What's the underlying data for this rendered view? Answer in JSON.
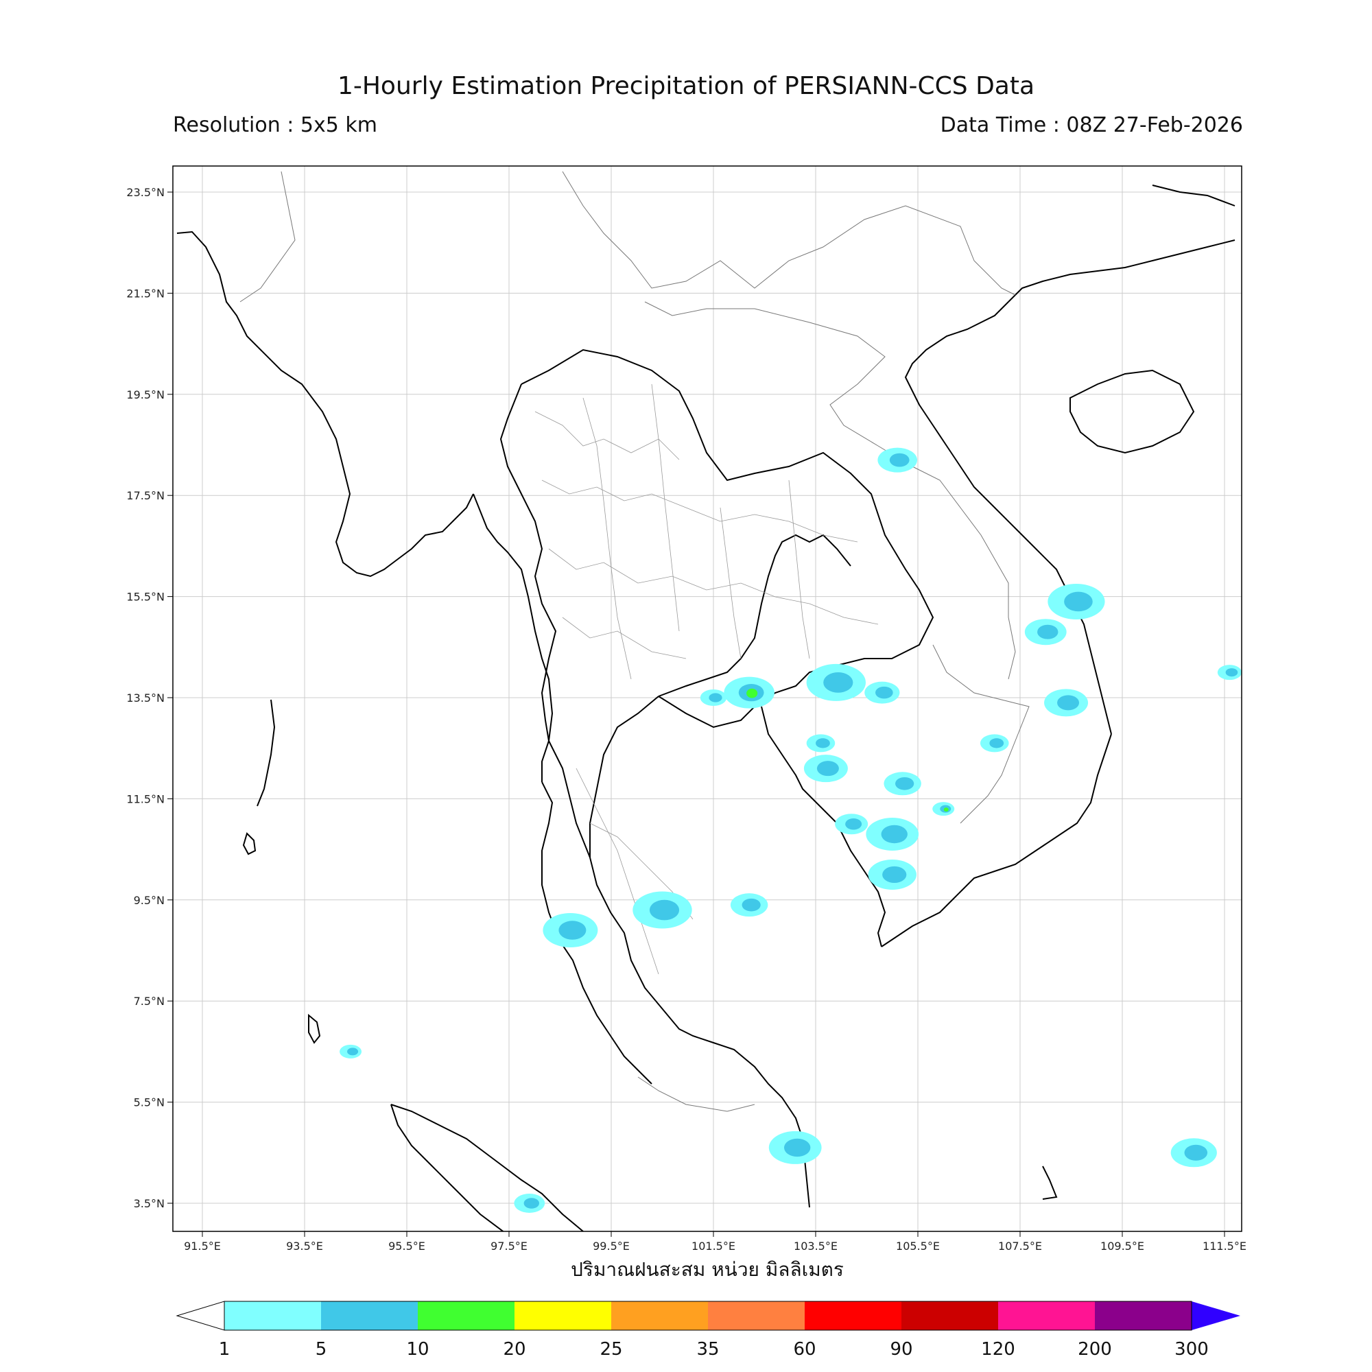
{
  "header": {
    "title": "1-Hourly Estimation Precipitation of PERSIANN-CCS Data",
    "resolution": "Resolution : 5x5 km",
    "data_time": "Data Time : 08Z 27-Feb-2026"
  },
  "map": {
    "lon_ticks": [
      "91.5°E",
      "93.5°E",
      "95.5°E",
      "97.5°E",
      "99.5°E",
      "101.5°E",
      "103.5°E",
      "105.5°E",
      "107.5°E",
      "109.5°E",
      "111.5°E"
    ],
    "lat_ticks": [
      "23.5°N",
      "21.5°N",
      "19.5°N",
      "17.5°N",
      "15.5°N",
      "13.5°N",
      "11.5°N",
      "9.5°N",
      "7.5°N",
      "5.5°N",
      "3.5°N"
    ],
    "x_label": "ปริมาณฝนสะสม หน่วย มิลลิเมตร"
  },
  "colorbar": {
    "levels": [
      "1",
      "5",
      "10",
      "20",
      "25",
      "35",
      "60",
      "90",
      "120",
      "200",
      "300"
    ],
    "colors": [
      "#80ffff",
      "#40c8e8",
      "#40ff30",
      "#ffff00",
      "#ffa020",
      "#ff8040",
      "#ff0000",
      "#cc0000",
      "#ff1493",
      "#8b008b"
    ],
    "extend_color": "#3000ff"
  },
  "rain_cells": [
    {
      "lon": 106.0,
      "lat": 11.3,
      "level": 2
    },
    {
      "lon": 105.2,
      "lat": 11.8,
      "level": 1
    },
    {
      "lon": 105.0,
      "lat": 10.8,
      "level": 1
    },
    {
      "lon": 103.6,
      "lat": 12.6,
      "level": 1
    },
    {
      "lon": 103.7,
      "lat": 12.1,
      "level": 1
    },
    {
      "lon": 103.9,
      "lat": 13.8,
      "level": 1
    },
    {
      "lon": 104.8,
      "lat": 13.6,
      "level": 1
    },
    {
      "lon": 102.2,
      "lat": 13.6,
      "level": 2
    },
    {
      "lon": 101.5,
      "lat": 13.5,
      "level": 1
    },
    {
      "lon": 108.0,
      "lat": 14.8,
      "level": 1
    },
    {
      "lon": 108.6,
      "lat": 15.4,
      "level": 1
    },
    {
      "lon": 104.2,
      "lat": 11.0,
      "level": 1
    },
    {
      "lon": 105.0,
      "lat": 10.0,
      "level": 1
    },
    {
      "lon": 111.6,
      "lat": 14.0,
      "level": 1
    },
    {
      "lon": 105.1,
      "lat": 18.2,
      "level": 1
    },
    {
      "lon": 98.7,
      "lat": 8.9,
      "level": 1
    },
    {
      "lon": 97.9,
      "lat": 3.5,
      "level": 1
    },
    {
      "lon": 110.9,
      "lat": 4.5,
      "level": 1
    },
    {
      "lon": 94.4,
      "lat": 6.5,
      "level": 1
    },
    {
      "lon": 102.2,
      "lat": 9.4,
      "level": 1
    },
    {
      "lon": 103.1,
      "lat": 4.6,
      "level": 1
    },
    {
      "lon": 107.0,
      "lat": 12.6,
      "level": 1
    },
    {
      "lon": 108.4,
      "lat": 13.4,
      "level": 1
    },
    {
      "lon": 100.5,
      "lat": 9.3,
      "level": 1
    }
  ]
}
